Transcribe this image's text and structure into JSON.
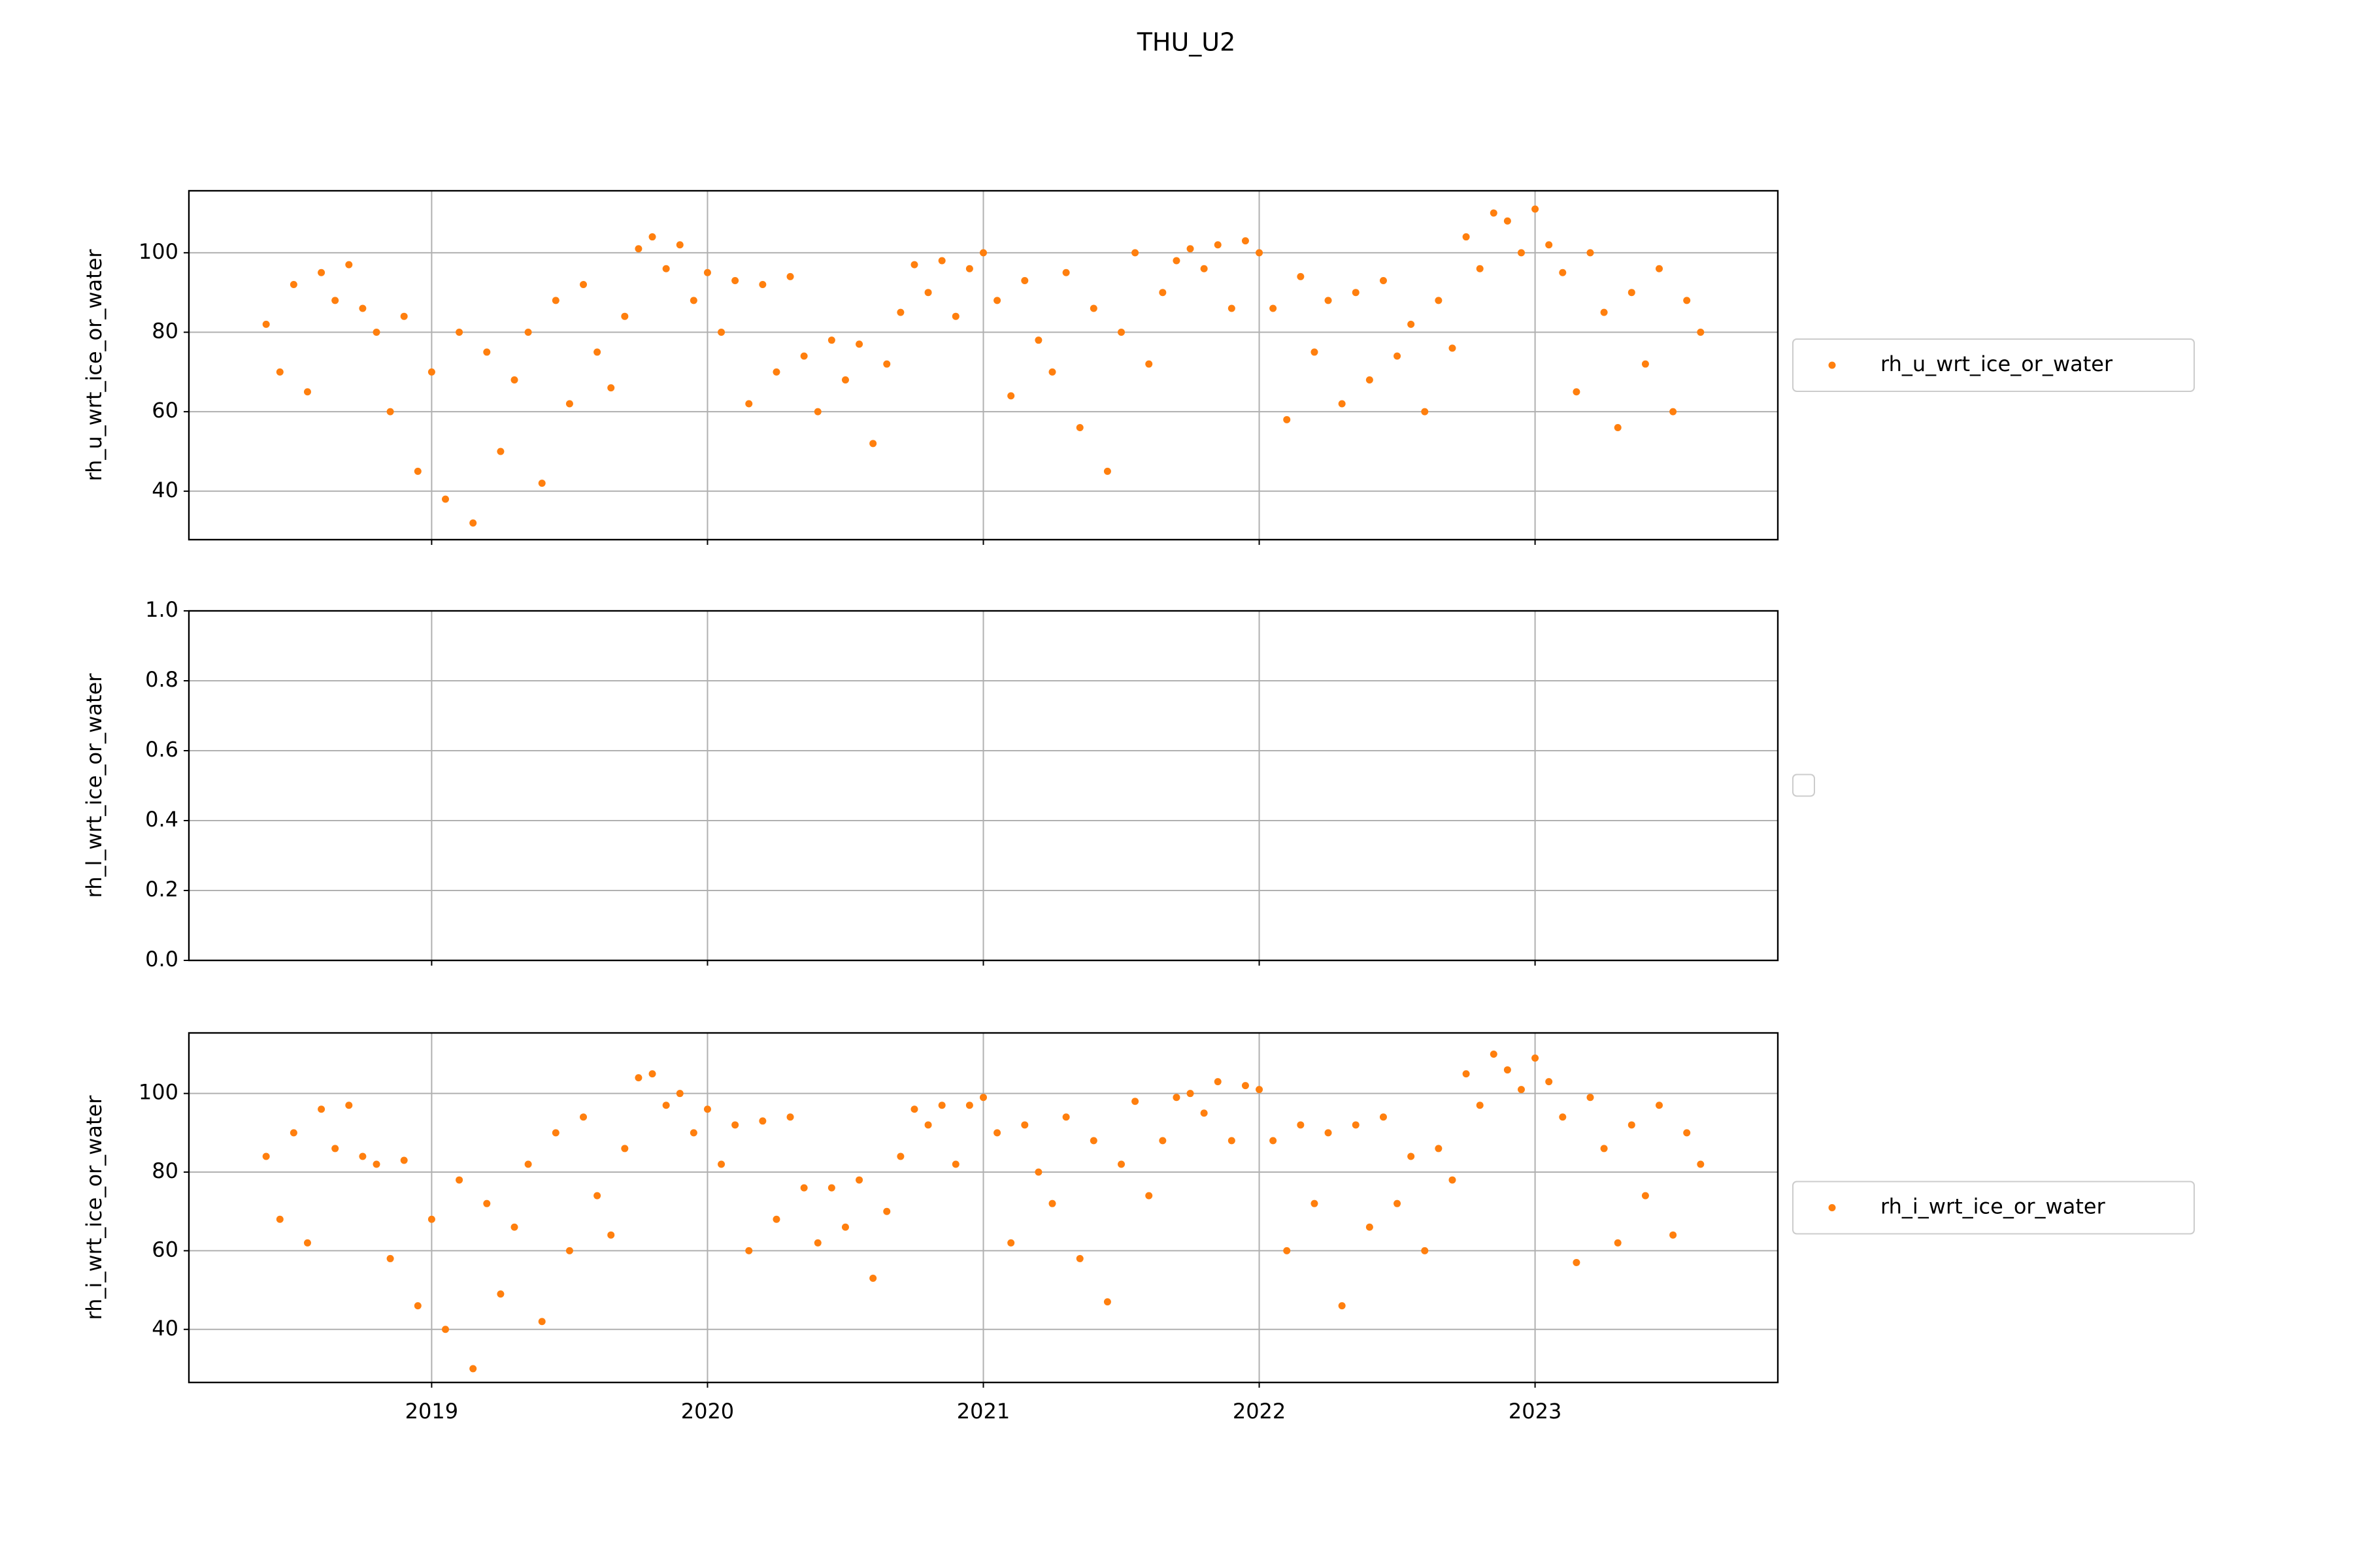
{
  "title": "THU_U2",
  "chart_data": [
    {
      "type": "scatter",
      "ylabel": "rh_u_wrt_ice_or_water",
      "x": [
        2018.4,
        2018.45,
        2018.5,
        2018.55,
        2018.6,
        2018.65,
        2018.7,
        2018.75,
        2018.8,
        2018.85,
        2018.9,
        2018.95,
        2019.0,
        2019.05,
        2019.1,
        2019.15,
        2019.2,
        2019.25,
        2019.3,
        2019.35,
        2019.4,
        2019.45,
        2019.5,
        2019.55,
        2019.6,
        2019.65,
        2019.7,
        2019.75,
        2019.8,
        2019.85,
        2019.9,
        2019.95,
        2020.0,
        2020.05,
        2020.1,
        2020.15,
        2020.2,
        2020.25,
        2020.3,
        2020.35,
        2020.4,
        2020.45,
        2020.5,
        2020.55,
        2020.6,
        2020.65,
        2020.7,
        2020.75,
        2020.8,
        2020.85,
        2020.9,
        2020.95,
        2021.0,
        2021.05,
        2021.1,
        2021.15,
        2021.2,
        2021.25,
        2021.3,
        2021.35,
        2021.4,
        2021.45,
        2021.5,
        2021.55,
        2021.6,
        2021.65,
        2021.7,
        2021.75,
        2021.8,
        2021.85,
        2021.9,
        2021.95,
        2022.0,
        2022.05,
        2022.1,
        2022.15,
        2022.2,
        2022.25,
        2022.3,
        2022.35,
        2022.4,
        2022.45,
        2022.5,
        2022.55,
        2022.6,
        2022.65,
        2022.7,
        2022.75,
        2022.8,
        2022.85,
        2022.9,
        2022.95,
        2023.0,
        2023.05,
        2023.1,
        2023.15,
        2023.2,
        2023.25,
        2023.3,
        2023.35,
        2023.4,
        2023.45,
        2023.5,
        2023.55,
        2023.6
      ],
      "series": [
        {
          "name": "rh_u_wrt_ice_or_water",
          "color": "#ff7f0e",
          "values": [
            82,
            70,
            92,
            65,
            95,
            88,
            97,
            86,
            80,
            60,
            84,
            45,
            70,
            38,
            80,
            32,
            75,
            50,
            68,
            80,
            42,
            88,
            62,
            92,
            75,
            66,
            84,
            101,
            104,
            96,
            102,
            88,
            95,
            80,
            93,
            62,
            92,
            70,
            94,
            74,
            60,
            78,
            68,
            77,
            52,
            72,
            85,
            97,
            90,
            98,
            84,
            96,
            100,
            88,
            64,
            93,
            78,
            70,
            95,
            56,
            86,
            45,
            80,
            100,
            72,
            90,
            98,
            101,
            96,
            102,
            86,
            103,
            100,
            86,
            58,
            94,
            75,
            88,
            62,
            90,
            68,
            93,
            74,
            82,
            60,
            88,
            76,
            104,
            96,
            110,
            108,
            100,
            111,
            102,
            95,
            65,
            100,
            85,
            56,
            90,
            72,
            96,
            60,
            88,
            80
          ]
        }
      ],
      "xlim": [
        2018.12,
        2023.88
      ],
      "xticks": [
        2019,
        2020,
        2021,
        2022,
        2023
      ],
      "show_xtick_labels": false,
      "ylim": [
        27.8,
        115.6
      ],
      "yticks": [
        40,
        60,
        80,
        100
      ],
      "grid": true,
      "legend": "right"
    },
    {
      "type": "scatter",
      "ylabel": "rh_l_wrt_ice_or_water",
      "x": [],
      "series": [],
      "xlim": [
        2018.12,
        2023.88
      ],
      "xticks": [
        2019,
        2020,
        2021,
        2022,
        2023
      ],
      "show_xtick_labels": false,
      "ylim": [
        0,
        1
      ],
      "yticks": [
        {
          "value": 0,
          "label": "0.0"
        },
        0.2,
        0.4,
        0.6,
        0.8,
        {
          "value": 1,
          "label": "1.0"
        }
      ],
      "grid": true,
      "legend": "right"
    },
    {
      "type": "scatter",
      "ylabel": "rh_i_wrt_ice_or_water",
      "x": [
        2018.4,
        2018.45,
        2018.5,
        2018.55,
        2018.6,
        2018.65,
        2018.7,
        2018.75,
        2018.8,
        2018.85,
        2018.9,
        2018.95,
        2019.0,
        2019.05,
        2019.1,
        2019.15,
        2019.2,
        2019.25,
        2019.3,
        2019.35,
        2019.4,
        2019.45,
        2019.5,
        2019.55,
        2019.6,
        2019.65,
        2019.7,
        2019.75,
        2019.8,
        2019.85,
        2019.9,
        2019.95,
        2020.0,
        2020.05,
        2020.1,
        2020.15,
        2020.2,
        2020.25,
        2020.3,
        2020.35,
        2020.4,
        2020.45,
        2020.5,
        2020.55,
        2020.6,
        2020.65,
        2020.7,
        2020.75,
        2020.8,
        2020.85,
        2020.9,
        2020.95,
        2021.0,
        2021.05,
        2021.1,
        2021.15,
        2021.2,
        2021.25,
        2021.3,
        2021.35,
        2021.4,
        2021.45,
        2021.5,
        2021.55,
        2021.6,
        2021.65,
        2021.7,
        2021.75,
        2021.8,
        2021.85,
        2021.9,
        2021.95,
        2022.0,
        2022.05,
        2022.1,
        2022.15,
        2022.2,
        2022.25,
        2022.3,
        2022.35,
        2022.4,
        2022.45,
        2022.5,
        2022.55,
        2022.6,
        2022.65,
        2022.7,
        2022.75,
        2022.8,
        2022.85,
        2022.9,
        2022.95,
        2023.0,
        2023.05,
        2023.1,
        2023.15,
        2023.2,
        2023.25,
        2023.3,
        2023.35,
        2023.4,
        2023.45,
        2023.5,
        2023.55,
        2023.6
      ],
      "series": [
        {
          "name": "rh_i_wrt_ice_or_water",
          "color": "#ff7f0e",
          "values": [
            84,
            68,
            90,
            62,
            96,
            86,
            97,
            84,
            82,
            58,
            83,
            46,
            68,
            40,
            78,
            30,
            72,
            49,
            66,
            82,
            42,
            90,
            60,
            94,
            74,
            64,
            86,
            104,
            105,
            97,
            100,
            90,
            96,
            82,
            92,
            60,
            93,
            68,
            94,
            76,
            62,
            76,
            66,
            78,
            53,
            70,
            84,
            96,
            92,
            97,
            82,
            97,
            99,
            90,
            62,
            92,
            80,
            72,
            94,
            58,
            88,
            47,
            82,
            98,
            74,
            88,
            99,
            100,
            95,
            103,
            88,
            102,
            101,
            88,
            60,
            92,
            72,
            90,
            46,
            92,
            66,
            94,
            72,
            84,
            60,
            86,
            78,
            105,
            97,
            110,
            106,
            101,
            109,
            103,
            94,
            57,
            99,
            86,
            62,
            92,
            74,
            97,
            64,
            90,
            82
          ]
        }
      ],
      "xlim": [
        2018.12,
        2023.88
      ],
      "xticks": [
        2019,
        2020,
        2021,
        2022,
        2023
      ],
      "show_xtick_labels": true,
      "ylim": [
        26.5,
        115.4
      ],
      "yticks": [
        40,
        60,
        80,
        100
      ],
      "grid": true,
      "legend": "right"
    }
  ]
}
